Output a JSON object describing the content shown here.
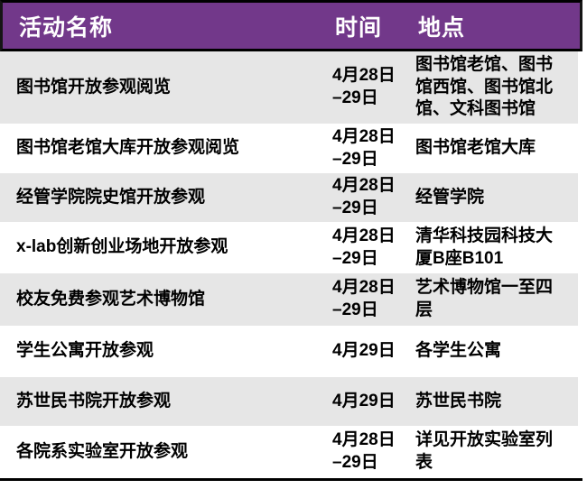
{
  "table": {
    "headers": [
      "活动名称",
      "时间",
      "地点"
    ],
    "rows": [
      {
        "name": "图书馆开放参观阅览",
        "time": "4月28日\n–29日",
        "location": "图书馆老馆、图书\n馆西馆、图书馆北\n馆、文科图书馆"
      },
      {
        "name": "图书馆老馆大库开放参观阅览",
        "time": "4月28日\n–29日",
        "location": "图书馆老馆大库"
      },
      {
        "name": "经管学院院史馆开放参观",
        "time": "4月28日\n–29日",
        "location": "经管学院"
      },
      {
        "name": "x-lab创新创业场地开放参观",
        "time": "4月28日\n–29日",
        "location": "清华科技园科技大\n厦B座B101"
      },
      {
        "name": "校友免费参观艺术博物馆",
        "time": "4月28日\n–29日",
        "location": "艺术博物馆一至四\n层"
      },
      {
        "name": "学生公寓开放参观",
        "time": "4月29日",
        "location": "各学生公寓"
      },
      {
        "name": "苏世民书院开放参观",
        "time": "4月29日",
        "location": "苏世民书院"
      },
      {
        "name": "各院系实验室开放参观",
        "time": "4月28日\n–29日",
        "location": "详见开放实验室列\n表"
      }
    ]
  },
  "colors": {
    "header_bg": "#72388a",
    "header_text": "#ffffff",
    "row_alt_bg": "#e6e6e6",
    "row_bg": "#ffffff",
    "border": "#000000",
    "body_text": "#000000"
  }
}
